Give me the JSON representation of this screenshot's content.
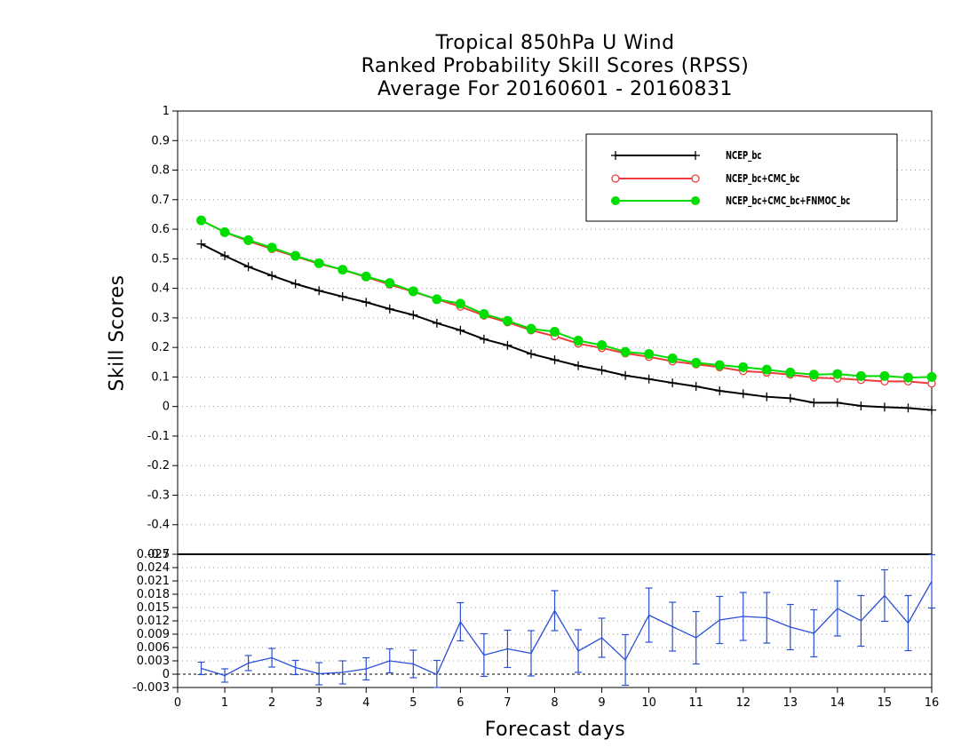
{
  "titles": [
    "Tropical 850hPa U Wind",
    "Ranked Probability Skill Scores (RPSS)",
    "Average For 20160601 - 20160831"
  ],
  "colors": {
    "ncep": "#000000",
    "ncep_cmc": "#ee3b3b",
    "ncep_cmc_fnmoc": "#00dd00",
    "diff": "#2a4fd6",
    "grid": "#999999"
  },
  "chart_data": [
    {
      "type": "line",
      "xlabel": "Forecast days",
      "ylabel": "Skill Scores",
      "xlim": [
        0,
        16
      ],
      "ylim": [
        -0.5,
        1
      ],
      "grid": true,
      "legend_position": "top-right",
      "yticks": [
        "1",
        "0.9",
        "0.8",
        "0.7",
        "0.6",
        "0.5",
        "0.4",
        "0.3",
        "0.2",
        "0.1",
        "0",
        "-0.1",
        "-0.2",
        "-0.3",
        "-0.4",
        "-0.5"
      ],
      "x": [
        0.5,
        1,
        1.5,
        2,
        2.5,
        3,
        3.5,
        4,
        4.5,
        5,
        5.5,
        6,
        6.5,
        7,
        7.5,
        8,
        8.5,
        9,
        9.5,
        10,
        10.5,
        11,
        11.5,
        12,
        12.5,
        13,
        13.5,
        14,
        14.5,
        15,
        15.5,
        16
      ],
      "series": [
        {
          "name": "NCEP_bc",
          "marker": "plus",
          "values": [
            0.55,
            0.51,
            0.473,
            0.443,
            0.415,
            0.392,
            0.372,
            0.353,
            0.33,
            0.31,
            0.282,
            0.258,
            0.228,
            0.207,
            0.178,
            0.158,
            0.138,
            0.123,
            0.105,
            0.093,
            0.08,
            0.068,
            0.053,
            0.043,
            0.033,
            0.028,
            0.013,
            0.013,
            0.002,
            -0.002,
            -0.005,
            -0.012
          ]
        },
        {
          "name": "NCEP_bc+CMC_bc",
          "marker": "open-circle",
          "values": [
            0.63,
            0.59,
            0.56,
            0.533,
            0.508,
            0.483,
            0.463,
            0.438,
            0.413,
            0.388,
            0.363,
            0.338,
            0.308,
            0.285,
            0.258,
            0.238,
            0.213,
            0.198,
            0.18,
            0.168,
            0.153,
            0.143,
            0.133,
            0.12,
            0.115,
            0.108,
            0.098,
            0.095,
            0.09,
            0.085,
            0.085,
            0.078
          ]
        },
        {
          "name": "NCEP_bc+CMC_bc+FNMOC_bc",
          "marker": "filled-circle",
          "values": [
            0.63,
            0.59,
            0.563,
            0.538,
            0.51,
            0.485,
            0.463,
            0.44,
            0.418,
            0.39,
            0.363,
            0.348,
            0.313,
            0.29,
            0.263,
            0.253,
            0.223,
            0.208,
            0.185,
            0.178,
            0.163,
            0.148,
            0.14,
            0.133,
            0.125,
            0.115,
            0.108,
            0.11,
            0.103,
            0.103,
            0.098,
            0.1
          ]
        }
      ]
    },
    {
      "type": "line",
      "xlabel": "Forecast days",
      "xlim": [
        0,
        16
      ],
      "ylim": [
        -0.003,
        0.027
      ],
      "grid": true,
      "xticks": [
        "0",
        "1",
        "2",
        "3",
        "4",
        "5",
        "6",
        "7",
        "8",
        "9",
        "10",
        "11",
        "12",
        "13",
        "14",
        "15",
        "16"
      ],
      "yticks": [
        "0.027",
        "0.024",
        "0.021",
        "0.018",
        "0.015",
        "0.012",
        "0.009",
        "0.006",
        "0.003",
        "0",
        "-0.003"
      ],
      "x": [
        0.5,
        1,
        1.5,
        2,
        2.5,
        3,
        3.5,
        4,
        4.5,
        5,
        5.5,
        6,
        6.5,
        7,
        7.5,
        8,
        8.5,
        9,
        9.5,
        10,
        10.5,
        11,
        11.5,
        12,
        12.5,
        13,
        13.5,
        14,
        14.5,
        15,
        15.5,
        16
      ],
      "values": [
        0.0013,
        -0.0003,
        0.0025,
        0.0037,
        0.0015,
        0.0001,
        0.0004,
        0.0012,
        0.003,
        0.0023,
        -0.0001,
        0.0118,
        0.0043,
        0.0057,
        0.0047,
        0.0143,
        0.0052,
        0.0082,
        0.0032,
        0.0133,
        0.0107,
        0.0082,
        0.0122,
        0.013,
        0.0127,
        0.0106,
        0.0092,
        0.0148,
        0.012,
        0.0177,
        0.0115,
        0.0209
      ],
      "error": [
        0.0014,
        0.0015,
        0.0017,
        0.0021,
        0.0016,
        0.0025,
        0.0026,
        0.0025,
        0.0027,
        0.0031,
        0.0032,
        0.0043,
        0.0048,
        0.0042,
        0.0051,
        0.0045,
        0.0048,
        0.0044,
        0.0057,
        0.0061,
        0.0055,
        0.0059,
        0.0053,
        0.0054,
        0.0057,
        0.0051,
        0.0053,
        0.0062,
        0.0057,
        0.0058,
        0.0062,
        0.006
      ]
    }
  ]
}
